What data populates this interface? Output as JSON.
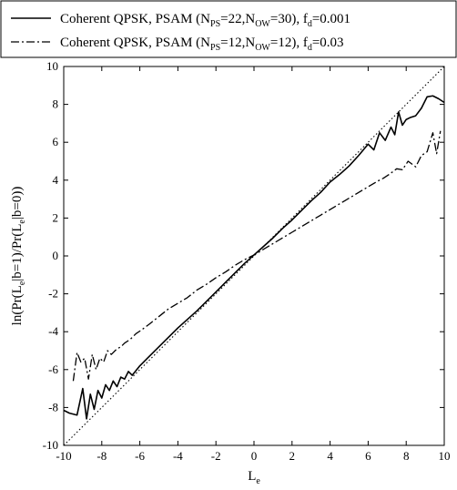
{
  "chart_data": {
    "type": "line",
    "xlabel": {
      "base": "L",
      "sub": "e"
    },
    "ylabel": {
      "parts": [
        {
          "t": "ln(Pr(L"
        },
        {
          "t": "e",
          "sub": true
        },
        {
          "t": "|b=1)/Pr(L"
        },
        {
          "t": "e",
          "sub": true
        },
        {
          "t": "|b=0))"
        }
      ]
    },
    "xlim": [
      -10,
      10
    ],
    "ylim": [
      -10,
      10
    ],
    "xticks": [
      "-10",
      "-8",
      "-6",
      "-4",
      "-2",
      "0",
      "2",
      "4",
      "6",
      "8",
      "10"
    ],
    "yticks": [
      "-10",
      "-8",
      "-6",
      "-4",
      "-2",
      "0",
      "2",
      "4",
      "6",
      "8",
      "10"
    ],
    "grid": false,
    "legend_position": "top",
    "series": [
      {
        "name": "Coherent QPSK, PSAM (NPS=22,NOW=30), fd=0.001",
        "legend_parts": [
          {
            "t": "Coherent QPSK, PSAM (N"
          },
          {
            "t": "PS",
            "sub": true
          },
          {
            "t": "=22,N"
          },
          {
            "t": "OW",
            "sub": true
          },
          {
            "t": "=30), f"
          },
          {
            "t": "d",
            "sub": true
          },
          {
            "t": "=0.001"
          }
        ],
        "style": "solid",
        "color": "#000000",
        "x": [
          -10,
          -9.7,
          -9.3,
          -9.0,
          -8.8,
          -8.6,
          -8.4,
          -8.2,
          -8.0,
          -7.8,
          -7.6,
          -7.4,
          -7.2,
          -7.0,
          -6.8,
          -6.6,
          -6.4,
          -6.0,
          -5.5,
          -5.0,
          -4.5,
          -4.0,
          -3.5,
          -3.0,
          -2.5,
          -2.0,
          -1.5,
          -1.0,
          -0.5,
          0,
          0.5,
          1.0,
          1.5,
          2.0,
          2.5,
          3.0,
          3.5,
          4.0,
          4.5,
          5.0,
          5.5,
          6.0,
          6.3,
          6.6,
          6.9,
          7.2,
          7.4,
          7.6,
          7.8,
          8.0,
          8.2,
          8.5,
          8.8,
          9.1,
          9.4,
          9.7,
          10
        ],
        "y": [
          -8.15,
          -8.3,
          -8.4,
          -7.0,
          -8.6,
          -7.3,
          -8.1,
          -7.1,
          -7.5,
          -6.8,
          -7.1,
          -6.6,
          -6.9,
          -6.4,
          -6.5,
          -6.1,
          -6.3,
          -5.8,
          -5.3,
          -4.8,
          -4.3,
          -3.8,
          -3.35,
          -2.9,
          -2.4,
          -1.9,
          -1.4,
          -0.9,
          -0.4,
          0.05,
          0.5,
          0.95,
          1.45,
          1.9,
          2.4,
          2.9,
          3.35,
          3.9,
          4.3,
          4.75,
          5.3,
          5.9,
          5.6,
          6.5,
          6.1,
          6.8,
          6.4,
          7.6,
          6.9,
          7.2,
          7.3,
          7.4,
          7.8,
          8.4,
          8.45,
          8.3,
          8.1
        ]
      },
      {
        "name": "Coherent QPSK, PSAM (NPS=12,NOW=12), fd=0.03",
        "legend_parts": [
          {
            "t": "Coherent QPSK, PSAM (N"
          },
          {
            "t": "PS",
            "sub": true
          },
          {
            "t": "=12,N"
          },
          {
            "t": "OW",
            "sub": true
          },
          {
            "t": "=12), f"
          },
          {
            "t": "d",
            "sub": true
          },
          {
            "t": "=0.03"
          }
        ],
        "style": "dashdot",
        "color": "#000000",
        "x": [
          -9.5,
          -9.3,
          -9.1,
          -8.9,
          -8.7,
          -8.5,
          -8.3,
          -8.1,
          -7.9,
          -7.7,
          -7.5,
          -7.2,
          -7.0,
          -6.8,
          -6.5,
          -6.2,
          -5.9,
          -5.5,
          -5.0,
          -4.5,
          -4.0,
          -3.5,
          -3.0,
          -2.5,
          -2.0,
          -1.5,
          -1.0,
          -0.5,
          0,
          0.5,
          1.0,
          1.5,
          2.0,
          2.5,
          3.0,
          3.5,
          4.0,
          4.5,
          5.0,
          5.5,
          6.0,
          6.5,
          6.8,
          7.1,
          7.3,
          7.5,
          7.8,
          8.1,
          8.5,
          8.8,
          9.1,
          9.4,
          9.6,
          9.8
        ],
        "y": [
          -6.6,
          -5.1,
          -5.6,
          -5.4,
          -6.5,
          -5.2,
          -6.0,
          -5.4,
          -5.6,
          -5.0,
          -5.2,
          -4.9,
          -4.8,
          -4.6,
          -4.4,
          -4.1,
          -3.9,
          -3.6,
          -3.2,
          -2.8,
          -2.5,
          -2.2,
          -1.8,
          -1.5,
          -1.15,
          -0.85,
          -0.5,
          -0.2,
          0.05,
          0.35,
          0.65,
          0.95,
          1.25,
          1.55,
          1.85,
          2.15,
          2.45,
          2.75,
          3.05,
          3.35,
          3.65,
          3.95,
          4.1,
          4.3,
          4.45,
          4.6,
          4.55,
          5.0,
          4.7,
          5.3,
          5.5,
          6.5,
          5.4,
          6.6
        ]
      },
      {
        "name": "",
        "style": "dotted",
        "color": "#000000",
        "x": [
          -10,
          10
        ],
        "y": [
          -10,
          10
        ]
      }
    ]
  }
}
